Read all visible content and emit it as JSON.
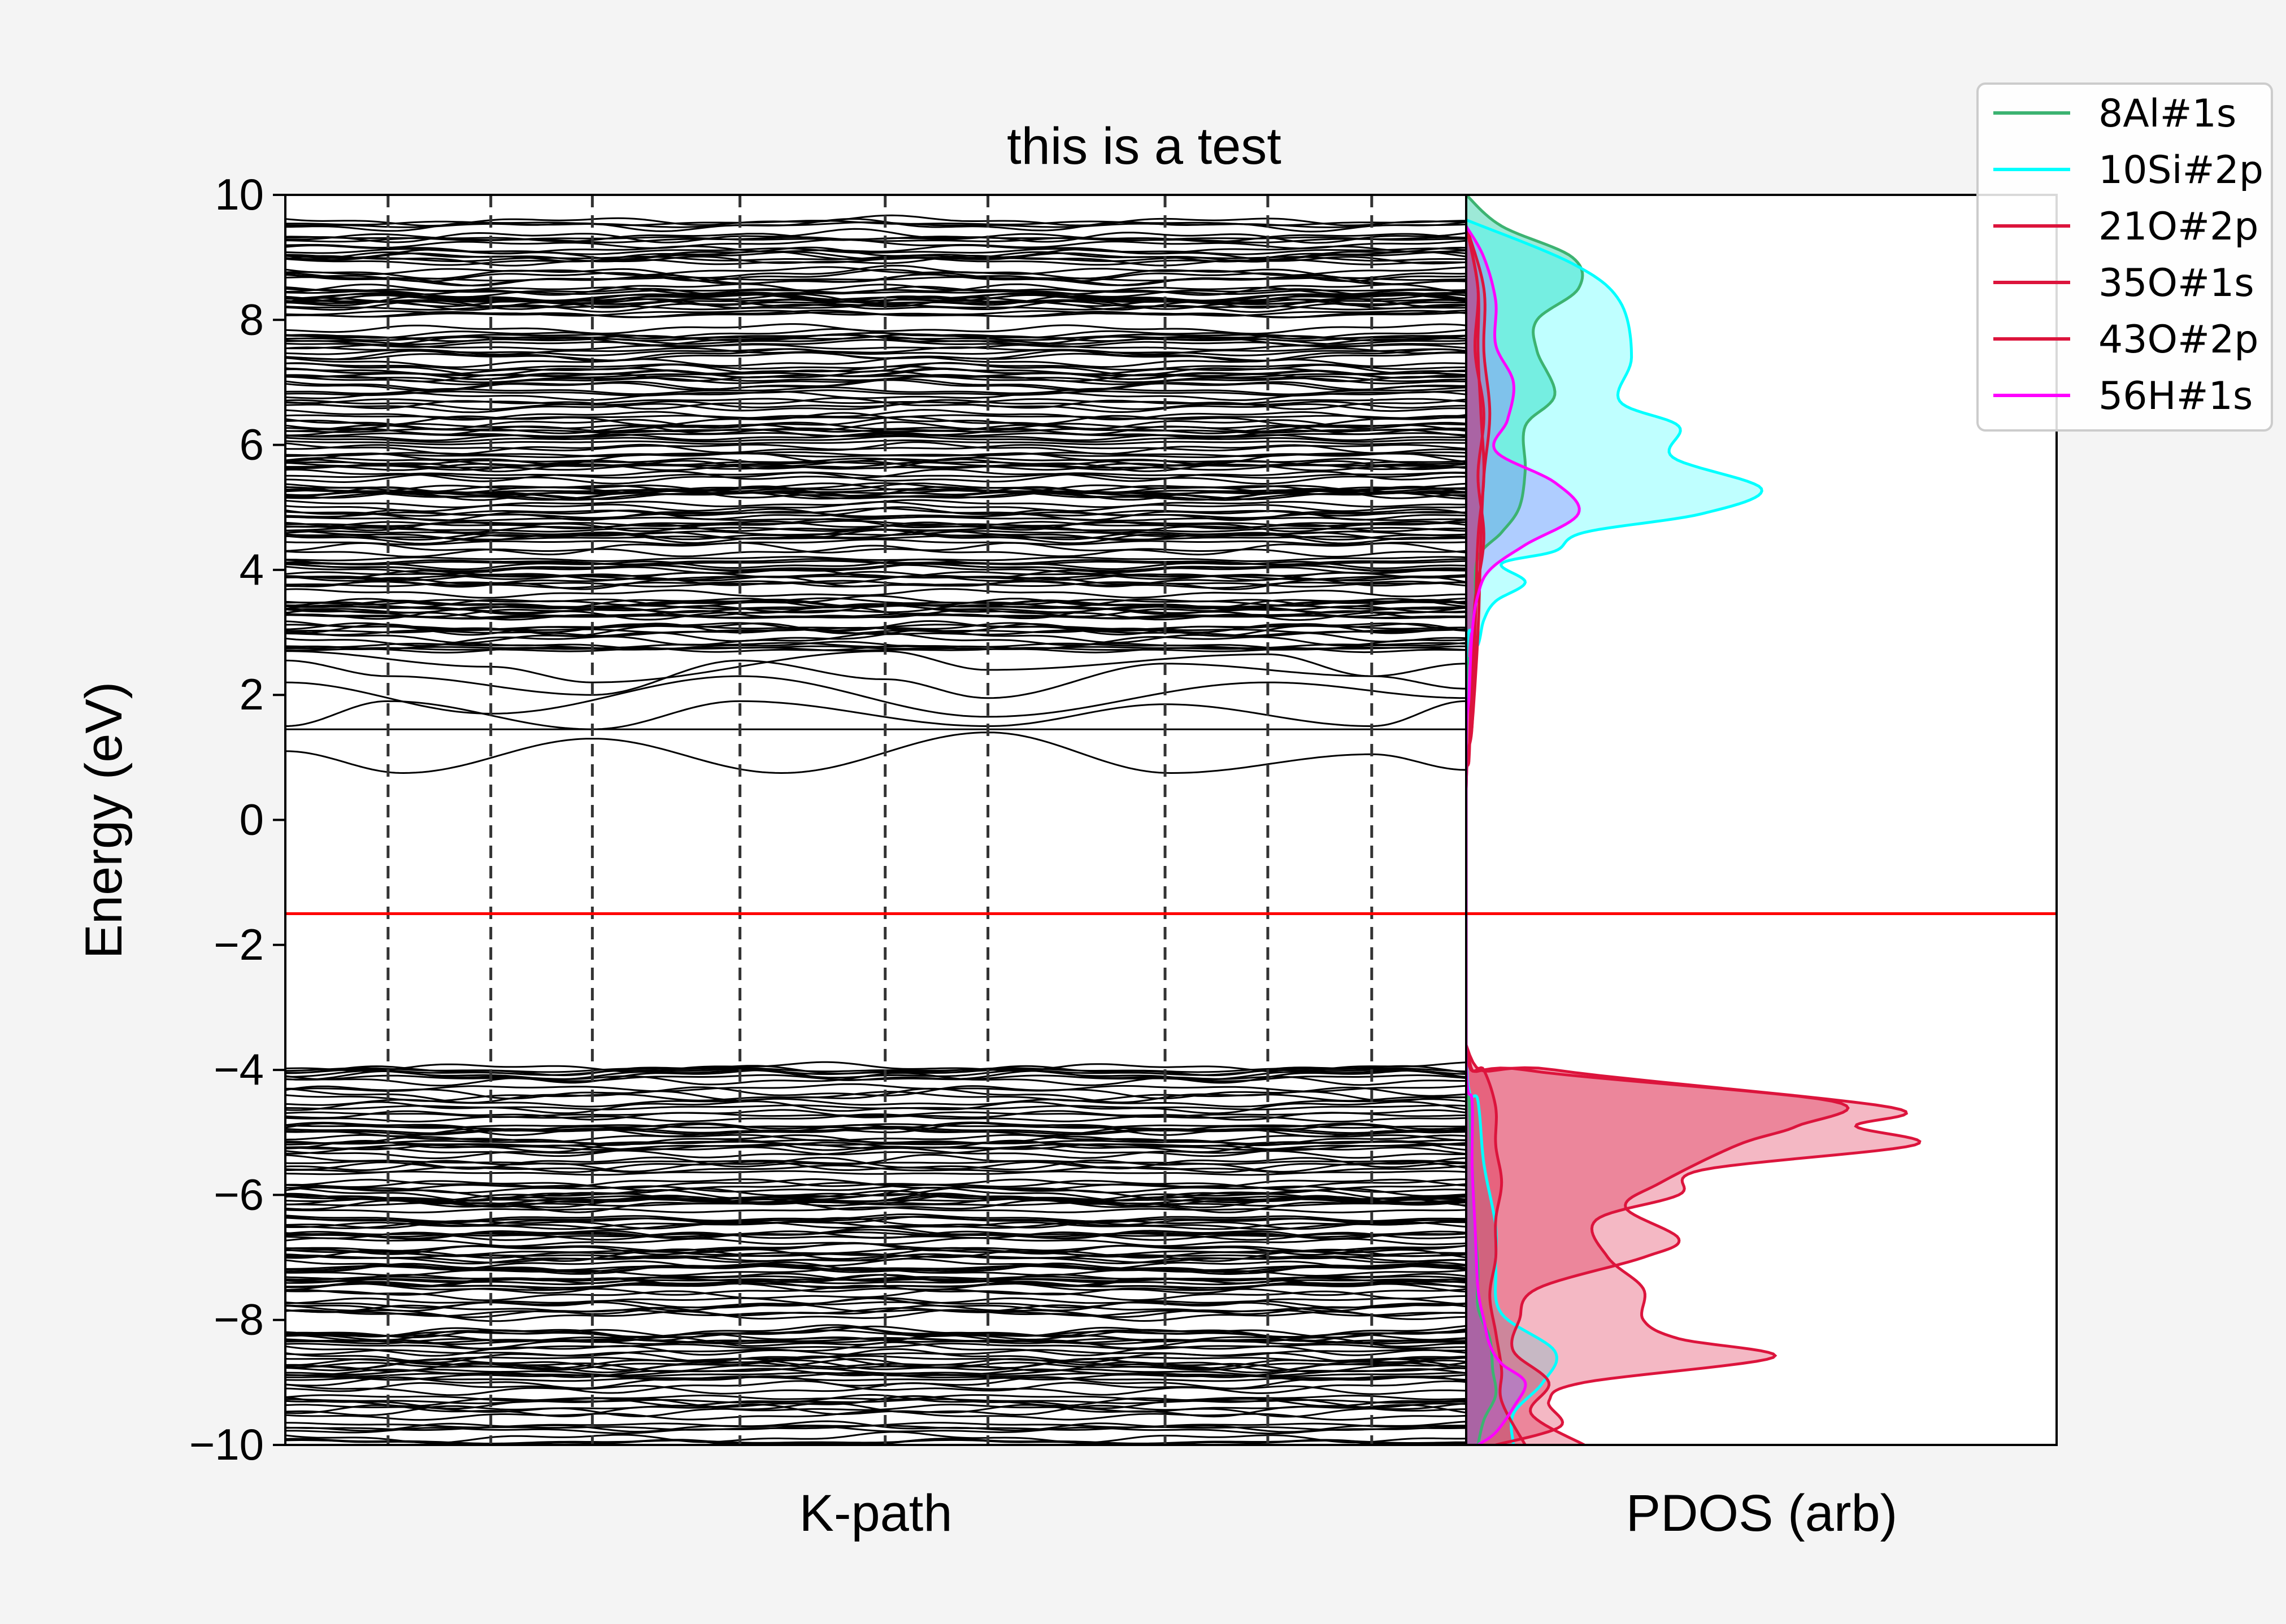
{
  "chart_data": [
    {
      "type": "line",
      "title": "this is a test",
      "xlabel": "K-path",
      "ylabel": "Energy (eV)",
      "ylim": [
        -10,
        10
      ],
      "yticks": [
        10,
        8,
        6,
        4,
        2,
        0,
        -2,
        -4,
        -6,
        -8,
        -10
      ],
      "xlim": [
        0,
        1
      ],
      "kpath_divisions": [
        0.087,
        0.174,
        0.26,
        0.385,
        0.508,
        0.595,
        0.745,
        0.832,
        0.92
      ],
      "fermi_level": -1.5,
      "fermi_color": "#ff0000",
      "band_color": "#000000",
      "divider_color": "#333333",
      "featured_bands": [
        {
          "x": [
            0,
            0.1,
            0.26,
            0.42,
            0.595,
            0.75,
            0.92,
            1.0
          ],
          "y": [
            1.1,
            0.75,
            1.3,
            0.75,
            1.4,
            0.75,
            1.05,
            0.8
          ]
        },
        {
          "x": [
            0,
            1.0
          ],
          "y": [
            1.45,
            1.45
          ]
        },
        {
          "x": [
            0,
            0.087,
            0.26,
            0.385,
            0.595,
            0.745,
            0.92,
            1.0
          ],
          "y": [
            1.5,
            1.9,
            1.45,
            1.9,
            1.5,
            1.85,
            1.5,
            1.9
          ]
        },
        {
          "x": [
            0,
            0.174,
            0.385,
            0.595,
            0.832,
            1.0
          ],
          "y": [
            2.2,
            1.7,
            2.3,
            1.65,
            2.2,
            1.95
          ]
        },
        {
          "x": [
            0,
            0.087,
            0.26,
            0.385,
            0.508,
            0.595,
            0.745,
            0.92,
            1.0
          ],
          "y": [
            2.55,
            2.3,
            2.0,
            2.55,
            2.25,
            1.95,
            2.5,
            2.3,
            2.1
          ]
        },
        {
          "x": [
            0,
            0.174,
            0.26,
            0.508,
            0.595,
            0.832,
            0.92,
            1.0
          ],
          "y": [
            2.7,
            2.45,
            2.2,
            2.7,
            2.4,
            2.65,
            2.3,
            2.5
          ]
        }
      ],
      "band_regions": [
        {
          "ymin": 2.7,
          "ymax": 9.6,
          "approx_count": 170
        },
        {
          "ymin": -10.0,
          "ymax": -3.95,
          "approx_count": 140
        }
      ]
    },
    {
      "type": "area",
      "xlabel": "PDOS (arb)",
      "ylim": [
        -10,
        10
      ],
      "fermi_level": -1.5,
      "legend_position": "upper-right",
      "series": [
        {
          "name": "8Al#1s",
          "color": "#3cb371",
          "fill": "#3cd4b0",
          "fill_opacity": 0.5,
          "points": [
            [
              0,
              10
            ],
            [
              0.06,
              9.5
            ],
            [
              0.18,
              9.0
            ],
            [
              0.19,
              8.5
            ],
            [
              0.12,
              8.0
            ],
            [
              0.12,
              7.5
            ],
            [
              0.15,
              6.8
            ],
            [
              0.1,
              6.3
            ],
            [
              0.1,
              5.6
            ],
            [
              0.09,
              5.0
            ],
            [
              0.06,
              4.6
            ],
            [
              0.02,
              4.2
            ],
            [
              0.015,
              3.5
            ],
            [
              0.01,
              3.0
            ],
            [
              0.008,
              2.5
            ],
            [
              0,
              2.0
            ],
            [
              0,
              -3.8
            ],
            [
              0.005,
              -4.5
            ],
            [
              0.01,
              -5.5
            ],
            [
              0.015,
              -6.5
            ],
            [
              0.02,
              -7.2
            ],
            [
              0.02,
              -7.8
            ],
            [
              0.04,
              -8.3
            ],
            [
              0.045,
              -8.8
            ],
            [
              0.05,
              -9.2
            ],
            [
              0.03,
              -9.6
            ],
            [
              0.02,
              -10
            ]
          ]
        },
        {
          "name": "10Si#2p",
          "color": "#00ffff",
          "fill": "#00ffff",
          "fill_opacity": 0.25,
          "points": [
            [
              0,
              9.6
            ],
            [
              0.18,
              8.9
            ],
            [
              0.26,
              8.3
            ],
            [
              0.28,
              7.4
            ],
            [
              0.26,
              6.7
            ],
            [
              0.36,
              6.3
            ],
            [
              0.35,
              5.8
            ],
            [
              0.5,
              5.3
            ],
            [
              0.4,
              4.9
            ],
            [
              0.2,
              4.6
            ],
            [
              0.15,
              4.3
            ],
            [
              0.06,
              4.1
            ],
            [
              0.1,
              3.8
            ],
            [
              0.05,
              3.5
            ],
            [
              0.03,
              3.2
            ],
            [
              0.02,
              2.8
            ],
            [
              0,
              2.5
            ],
            [
              0,
              -3.7
            ],
            [
              0.02,
              -4.5
            ],
            [
              0.03,
              -5.5
            ],
            [
              0.05,
              -6.5
            ],
            [
              0.05,
              -7.2
            ],
            [
              0.06,
              -7.9
            ],
            [
              0.15,
              -8.5
            ],
            [
              0.13,
              -9.0
            ],
            [
              0.08,
              -9.5
            ],
            [
              0.08,
              -10
            ]
          ]
        },
        {
          "name": "21O#2p",
          "color": "#dc143c",
          "fill": "#dc143c",
          "fill_opacity": 0.3,
          "points": [
            [
              0,
              9.5
            ],
            [
              0.02,
              8.5
            ],
            [
              0.015,
              7.5
            ],
            [
              0.03,
              6.5
            ],
            [
              0.02,
              5.5
            ],
            [
              0.03,
              4.5
            ],
            [
              0.015,
              3.5
            ],
            [
              0.01,
              2.5
            ],
            [
              0.005,
              1.0
            ],
            [
              0,
              0.5
            ],
            [
              0,
              -3.6
            ],
            [
              0.15,
              -4.0
            ],
            [
              0.72,
              -4.6
            ],
            [
              0.66,
              -4.9
            ],
            [
              0.76,
              -5.2
            ],
            [
              0.4,
              -5.6
            ],
            [
              0.36,
              -6.0
            ],
            [
              0.22,
              -6.4
            ],
            [
              0.24,
              -7.0
            ],
            [
              0.3,
              -7.5
            ],
            [
              0.3,
              -8.0
            ],
            [
              0.36,
              -8.3
            ],
            [
              0.52,
              -8.6
            ],
            [
              0.2,
              -9.0
            ],
            [
              0.14,
              -9.3
            ],
            [
              0.16,
              -9.7
            ],
            [
              0.05,
              -10
            ]
          ]
        },
        {
          "name": "35O#1s",
          "color": "#dc143c",
          "fill": "#dc143c",
          "fill_opacity": 0.3,
          "points": [
            [
              0,
              9.5
            ],
            [
              0.03,
              8.5
            ],
            [
              0.03,
              7.5
            ],
            [
              0.04,
              6.5
            ],
            [
              0.03,
              5.5
            ],
            [
              0.025,
              4.5
            ],
            [
              0.02,
              3.0
            ],
            [
              0.01,
              1.5
            ],
            [
              0,
              0.5
            ],
            [
              0,
              -3.6
            ],
            [
              0.1,
              -4.0
            ],
            [
              0.62,
              -4.5
            ],
            [
              0.56,
              -4.9
            ],
            [
              0.46,
              -5.2
            ],
            [
              0.33,
              -5.8
            ],
            [
              0.27,
              -6.2
            ],
            [
              0.36,
              -6.7
            ],
            [
              0.3,
              -7.0
            ],
            [
              0.12,
              -7.5
            ],
            [
              0.09,
              -8.0
            ],
            [
              0.08,
              -8.5
            ],
            [
              0.14,
              -9.0
            ],
            [
              0.11,
              -9.5
            ],
            [
              0.2,
              -10
            ]
          ]
        },
        {
          "name": "43O#2p",
          "color": "#dc143c",
          "fill": "#dc143c",
          "fill_opacity": 0.3,
          "points": [
            [
              0,
              9.5
            ],
            [
              0.02,
              8.5
            ],
            [
              0.02,
              7.5
            ],
            [
              0.025,
              6.5
            ],
            [
              0.03,
              5.5
            ],
            [
              0.02,
              4.5
            ],
            [
              0.015,
              3.0
            ],
            [
              0.01,
              1.5
            ],
            [
              0,
              0.5
            ],
            [
              0,
              -3.6
            ],
            [
              0.03,
              -4.0
            ],
            [
              0.05,
              -4.6
            ],
            [
              0.05,
              -5.2
            ],
            [
              0.06,
              -5.8
            ],
            [
              0.05,
              -6.4
            ],
            [
              0.05,
              -7.0
            ],
            [
              0.04,
              -7.6
            ],
            [
              0.05,
              -8.2
            ],
            [
              0.06,
              -8.8
            ],
            [
              0.06,
              -9.3
            ],
            [
              0.1,
              -10
            ]
          ]
        },
        {
          "name": "56H#1s",
          "color": "#ff00ff",
          "fill": "#9370ff",
          "fill_opacity": 0.35,
          "points": [
            [
              0,
              9.5
            ],
            [
              0.03,
              9.0
            ],
            [
              0.05,
              8.3
            ],
            [
              0.05,
              7.6
            ],
            [
              0.08,
              7.0
            ],
            [
              0.07,
              6.4
            ],
            [
              0.05,
              5.9
            ],
            [
              0.15,
              5.4
            ],
            [
              0.19,
              4.9
            ],
            [
              0.1,
              4.4
            ],
            [
              0.04,
              4.0
            ],
            [
              0.02,
              3.6
            ],
            [
              0.01,
              3.0
            ],
            [
              0.005,
              2.0
            ],
            [
              0,
              1.0
            ],
            [
              0,
              -3.8
            ],
            [
              0.01,
              -4.5
            ],
            [
              0.01,
              -5.5
            ],
            [
              0.015,
              -6.5
            ],
            [
              0.02,
              -7.5
            ],
            [
              0.03,
              -8.0
            ],
            [
              0.04,
              -8.4
            ],
            [
              0.06,
              -8.7
            ],
            [
              0.1,
              -9.0
            ],
            [
              0.08,
              -9.4
            ],
            [
              0.05,
              -9.8
            ],
            [
              0.02,
              -10
            ]
          ]
        }
      ]
    }
  ]
}
